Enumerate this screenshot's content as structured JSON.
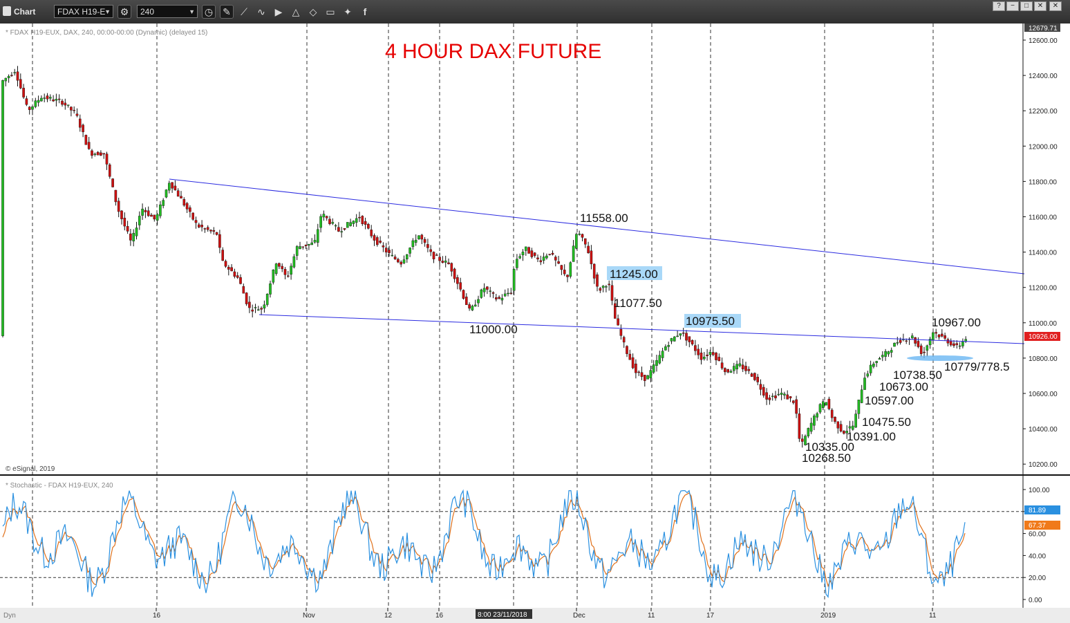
{
  "toolbar": {
    "title": "Chart",
    "symbol": "FDAX H19-E",
    "interval": "240"
  },
  "window_buttons": [
    "?",
    "−",
    "□",
    "✕"
  ],
  "chart": {
    "header": "* FDAX H19-EUX, DAX, 240, 00:00-00:00 (Dynamic) (delayed 15)",
    "copyright": "© eSignal, 2019",
    "title": "4 HOUR  DAX FUTURE",
    "last_price_top": "12679.71",
    "last_price": "10926.00",
    "price_ticks": [
      "12600.00",
      "12400.00",
      "12200.00",
      "12000.00",
      "11800.00",
      "11600.00",
      "11400.00",
      "11200.00",
      "11000.00",
      "10800.00",
      "10600.00",
      "10400.00",
      "10200.00"
    ],
    "annotations": {
      "a11558": "11558.00",
      "a11245": "11245.00",
      "a11077": "11077.50",
      "a11000": "11000.00",
      "a10975": "10975.50",
      "a10967": "10967.00",
      "a10779": "10779/778.5",
      "a10738": "10738.50",
      "a10673": "10673.00",
      "a10597": "10597.00",
      "a10475": "10475.50",
      "a10391": "10391.00",
      "a10335": "10335.00",
      "a10268": "10268.50"
    },
    "colors": {
      "up": "#22bb22",
      "down": "#cc1111",
      "trendline": "#2a2ae0",
      "stoch_k": "#2a90e0",
      "stoch_d": "#e0701a"
    }
  },
  "stochastic": {
    "header": "* Stochastic - FDAX H19-EUX, 240",
    "ticks": [
      "100.00",
      "80.00",
      "60.00",
      "40.00",
      "20.00",
      "0.00"
    ],
    "k_value": "81.89",
    "d_value": "67.37"
  },
  "time_axis": {
    "labels": [
      "16",
      "Nov",
      "12",
      "16",
      "Dec",
      "11",
      "17",
      "2019",
      "11"
    ],
    "cursor_label": "8:00 23/11/2018",
    "dyn_label": "Dyn"
  }
}
